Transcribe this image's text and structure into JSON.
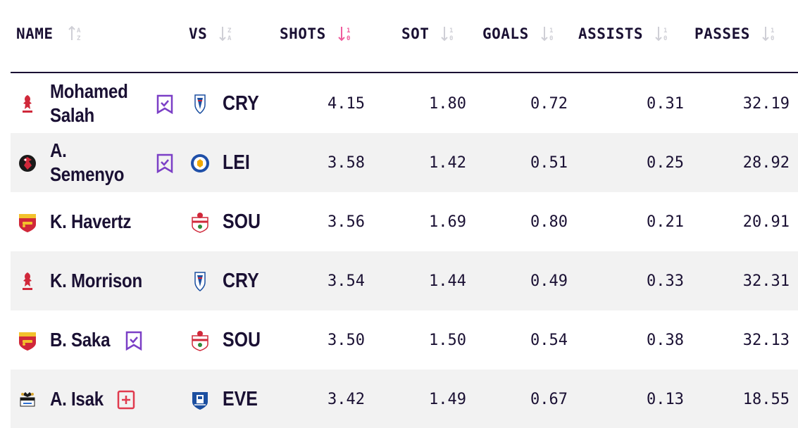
{
  "headers": {
    "name": "NAME",
    "vs": "VS",
    "shots": "SHOTS",
    "sot": "SOT",
    "goals": "GOALS",
    "assists": "ASSISTS",
    "passes": "PASSES"
  },
  "sort": {
    "active_column": "shots",
    "direction": "descending",
    "active_color": "#ef5b9c",
    "inactive_color": "#cfcfd6"
  },
  "tag_colors": {
    "watchlist": "#7b3fc6",
    "add": "#e03a4e"
  },
  "rows": [
    {
      "name": "Mohamed Salah",
      "club_icon": "liverpool-crest-icon",
      "tag_icon": "watchlist-check-icon",
      "opponent": "CRY",
      "opponent_icon": "crystal-palace-crest-icon",
      "shots": "4.15",
      "sot": "1.80",
      "goals": "0.72",
      "assists": "0.31",
      "passes": "32.19"
    },
    {
      "name": "A. Semenyo",
      "club_icon": "bournemouth-crest-icon",
      "tag_icon": "watchlist-check-icon",
      "opponent": "LEI",
      "opponent_icon": "leicester-crest-icon",
      "shots": "3.58",
      "sot": "1.42",
      "goals": "0.51",
      "assists": "0.25",
      "passes": "28.92"
    },
    {
      "name": "K. Havertz",
      "club_icon": "arsenal-crest-icon",
      "tag_icon": "",
      "opponent": "SOU",
      "opponent_icon": "southampton-crest-icon",
      "shots": "3.56",
      "sot": "1.69",
      "goals": "0.80",
      "assists": "0.21",
      "passes": "20.91"
    },
    {
      "name": "K. Morrison",
      "club_icon": "liverpool-crest-icon",
      "tag_icon": "",
      "opponent": "CRY",
      "opponent_icon": "crystal-palace-crest-icon",
      "shots": "3.54",
      "sot": "1.44",
      "goals": "0.49",
      "assists": "0.33",
      "passes": "32.31"
    },
    {
      "name": "B. Saka",
      "club_icon": "arsenal-crest-icon",
      "tag_icon": "watchlist-check-icon",
      "opponent": "SOU",
      "opponent_icon": "southampton-crest-icon",
      "shots": "3.50",
      "sot": "1.50",
      "goals": "0.54",
      "assists": "0.38",
      "passes": "32.13"
    },
    {
      "name": "A. Isak",
      "club_icon": "newcastle-crest-icon",
      "tag_icon": "add-plus-icon",
      "opponent": "EVE",
      "opponent_icon": "everton-crest-icon",
      "shots": "3.42",
      "sot": "1.49",
      "goals": "0.67",
      "assists": "0.13",
      "passes": "18.55"
    }
  ]
}
